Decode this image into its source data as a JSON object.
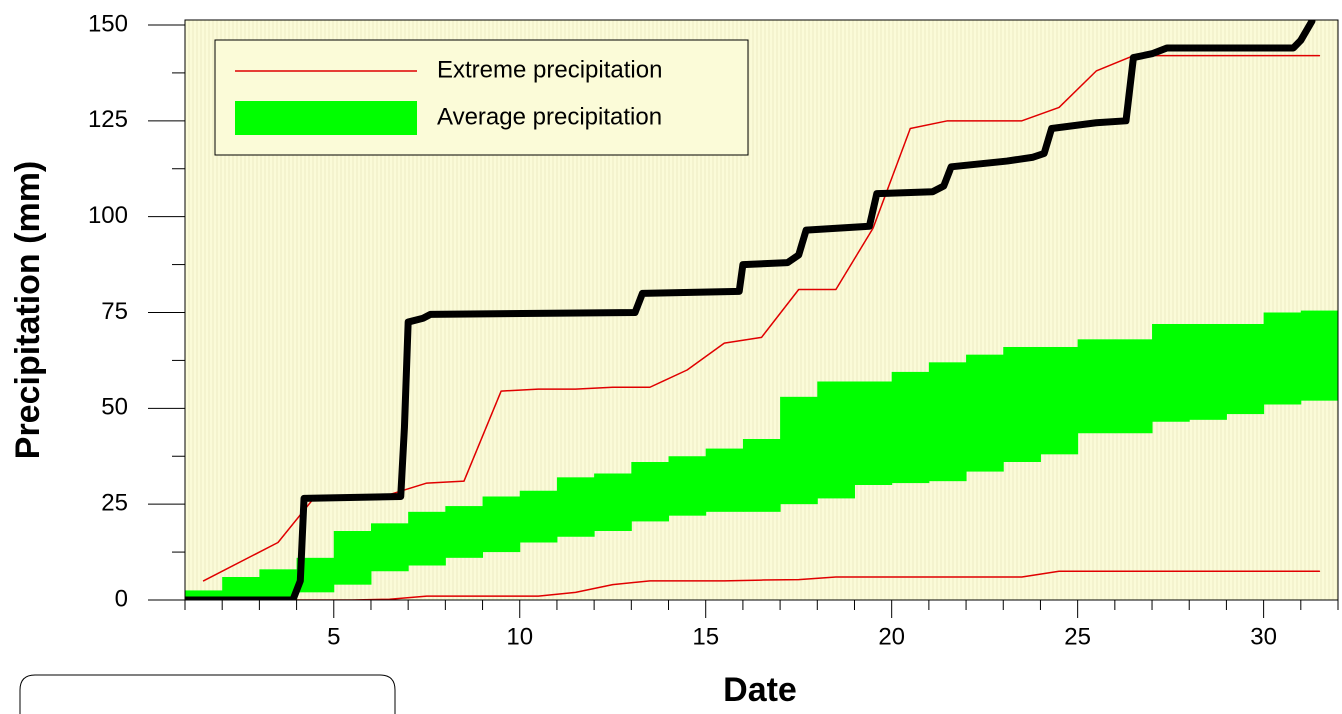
{
  "chart_data": {
    "type": "line",
    "x_label": "Date",
    "y_label": "Precipitation (mm)",
    "xlim": [
      1,
      32
    ],
    "ylim": [
      0,
      151.3
    ],
    "xticks": [
      5,
      10,
      15,
      20,
      25,
      30
    ],
    "yticks": [
      0,
      25,
      50,
      75,
      100,
      125,
      150
    ],
    "xminorticks": [
      1,
      2,
      3,
      4,
      6,
      7,
      8,
      9,
      11,
      12,
      13,
      14,
      16,
      17,
      18,
      19,
      21,
      22,
      23,
      24,
      26,
      27,
      28,
      29,
      31,
      32
    ],
    "yminorticks": [
      12.5,
      37.5,
      62.5,
      87.5,
      112.5,
      137.5
    ],
    "legend": "upper left",
    "band": {
      "name": "Average precipitation",
      "color": "#00ff00",
      "x": [
        1,
        2,
        3,
        4,
        5,
        6,
        7,
        8,
        9,
        10,
        11,
        12,
        13,
        14,
        15,
        16,
        17,
        18,
        19,
        20,
        21,
        22,
        23,
        24,
        25,
        26,
        27,
        28,
        29,
        30,
        31
      ],
      "low": [
        0,
        0,
        0,
        2,
        4,
        7.5,
        9,
        11,
        12.5,
        15,
        16.5,
        18,
        20.5,
        22,
        23,
        23,
        25,
        26.5,
        30,
        30.5,
        31,
        33.5,
        36,
        38,
        43.5,
        43.5,
        46.5,
        47,
        48.5,
        51,
        52
      ],
      "high": [
        2.5,
        6,
        8,
        11,
        18,
        20,
        23,
        24.5,
        27,
        28.5,
        32,
        33,
        36,
        37.5,
        39.5,
        42,
        53,
        57,
        57,
        59.5,
        62,
        64,
        66,
        66,
        68,
        68,
        72,
        72,
        72,
        75,
        75.5
      ]
    },
    "series": [
      {
        "name": "Extreme precipitation",
        "color": "#e00000",
        "width": 1.5,
        "x": [
          1.5,
          3.5,
          4.5,
          5.5,
          6.5,
          7.5,
          8.5,
          9.5,
          10.5,
          11.5,
          12.5,
          13.5,
          14.5,
          15.5,
          16.5,
          17.5,
          18.5,
          19.5,
          20.5,
          21.5,
          22.5,
          23.5,
          24.5,
          25.5,
          26.5,
          27.5,
          28.5,
          29.5,
          30.5,
          31.5
        ],
        "values": [
          5,
          15,
          27,
          27,
          27.5,
          30.5,
          31,
          54.5,
          55,
          55,
          55.5,
          55.5,
          60,
          67,
          68.5,
          81,
          81,
          97,
          123,
          125,
          125,
          125,
          128.5,
          138,
          142,
          142,
          142,
          142,
          142,
          142
        ]
      },
      {
        "color": "#e00000",
        "width": 1.5,
        "x": [
          1.5,
          3.5,
          4.5,
          5.5,
          6.5,
          7.5,
          8.5,
          9.5,
          10.5,
          11.5,
          12.5,
          13.5,
          14.5,
          15.5,
          16.5,
          17.5,
          18.5,
          19.5,
          20.5,
          21.5,
          22.5,
          23.5,
          24.5,
          25.5,
          26.5,
          27.5,
          28.5,
          29.5,
          30.5,
          31.5
        ],
        "values": [
          0,
          0,
          0,
          0,
          0.2,
          1,
          1,
          1,
          1,
          2,
          4,
          5,
          5,
          5,
          5.2,
          5.3,
          6,
          6,
          6,
          6,
          6,
          6,
          7.5,
          7.5,
          7.5,
          7.5,
          7.5,
          7.5,
          7.5,
          7.5
        ]
      },
      {
        "color": "#000000",
        "width": 7,
        "x": [
          1,
          3.9,
          4.1,
          4.2,
          6.8,
          6.9,
          7.0,
          7.4,
          7.6,
          13.1,
          13.3,
          15.9,
          16.0,
          17.2,
          17.5,
          17.7,
          19.4,
          19.6,
          21.1,
          21.4,
          21.6,
          23.1,
          23.8,
          24.1,
          24.3,
          25.5,
          26.3,
          26.5,
          27.0,
          27.4,
          30.8,
          31.0,
          31.3
        ],
        "values": [
          0,
          0,
          5,
          26.5,
          27,
          45,
          72.5,
          73.5,
          74.5,
          75,
          80,
          80.5,
          87.5,
          88,
          90,
          96.5,
          97.5,
          106,
          106.5,
          108,
          113,
          114.5,
          115.5,
          116.5,
          123,
          124.5,
          125,
          141.5,
          142.5,
          144,
          144,
          146,
          151
        ]
      }
    ]
  }
}
